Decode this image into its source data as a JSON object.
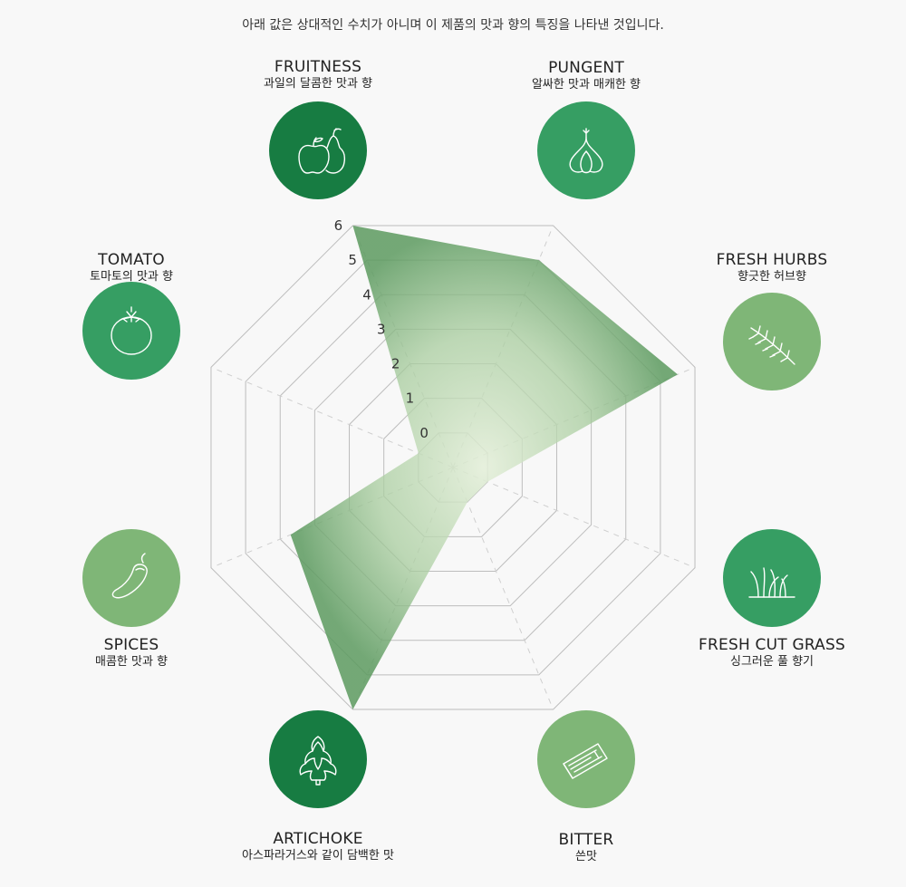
{
  "note": "아래 값은 상대적인 수치가 아니며 이 제품의 맛과 향의 특징을 나타낸 것입니다.",
  "colors": {
    "dark": "#177c42",
    "mid": "#369e63",
    "light": "#7fb677",
    "fill": "#9ccf95"
  },
  "flavors": [
    {
      "name": "FRUITNESS",
      "desc": "과일의 달콤한 맛과 향",
      "icon": "apple-pear-icon",
      "color": "#177c42"
    },
    {
      "name": "PUNGENT",
      "desc": "알싸한 맛과 매캐한 향",
      "icon": "garlic-icon",
      "color": "#369e63"
    },
    {
      "name": "FRESH HURBS",
      "desc": "향긋한 허브향",
      "icon": "herb-sprig-icon",
      "color": "#7fb677"
    },
    {
      "name": "FRESH CUT GRASS",
      "desc": "싱그러운 풀 향기",
      "icon": "grass-icon",
      "color": "#369e63"
    },
    {
      "name": "BITTER",
      "desc": "쓴맛",
      "icon": "bark-icon",
      "color": "#7fb677"
    },
    {
      "name": "ARTICHOKE",
      "desc": "아스파라거스와 같이 담백한 맛",
      "icon": "artichoke-icon",
      "color": "#177c42"
    },
    {
      "name": "SPICES",
      "desc": "매콤한 맛과 향",
      "icon": "chili-pepper-icon",
      "color": "#7fb677"
    },
    {
      "name": "TOMATO",
      "desc": "토마토의 맛과 향",
      "icon": "tomato-icon",
      "color": "#369e63"
    }
  ],
  "chart_data": {
    "type": "radar",
    "categories": [
      "FRUITNESS",
      "PUNGENT",
      "FRESH HURBS",
      "FRESH CUT GRASS",
      "BITTER",
      "ARTICHOKE",
      "SPICES",
      "TOMATO"
    ],
    "values": [
      6,
      5,
      5.5,
      0,
      0,
      6,
      3.7,
      0
    ],
    "ticks": [
      "0",
      "1",
      "2",
      "3",
      "4",
      "5",
      "6"
    ],
    "rlim": [
      -1,
      6
    ],
    "grid": true
  }
}
